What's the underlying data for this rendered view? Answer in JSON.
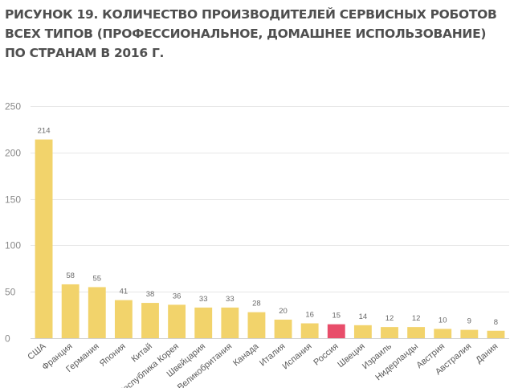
{
  "title": {
    "line1": "РИСУНОК 19. КОЛИЧЕСТВО ПРОИЗВОДИТЕЛЕЙ СЕРВИСНЫХ РОБОТОВ",
    "line2": "ВСЕХ ТИПОВ (ПРОФЕССИОНАЛЬНОЕ, ДОМАШНЕЕ ИСПОЛЬЗОВАНИЕ)",
    "line3": "ПО СТРАНАМ В 2016 Г."
  },
  "colors": {
    "bar": "#f2d36b",
    "highlight": "#e84d6a",
    "title": "#4f4f4f"
  },
  "chart_data": {
    "type": "bar",
    "title": "",
    "xlabel": "",
    "ylabel": "",
    "ylim": [
      0,
      250
    ],
    "yticks": [
      0,
      50,
      100,
      150,
      200,
      250
    ],
    "grid": true,
    "categories": [
      "США",
      "Франция",
      "Германия",
      "Япония",
      "Китай",
      "Республика Корея",
      "Швейцария",
      "Великобритания",
      "Канада",
      "Италия",
      "Испания",
      "Россия",
      "Швеция",
      "Израиль",
      "Нидерланды",
      "Австрия",
      "Австралия",
      "Дания"
    ],
    "values": [
      214,
      58,
      55,
      41,
      38,
      36,
      33,
      33,
      28,
      20,
      16,
      15,
      14,
      12,
      12,
      10,
      9,
      8
    ],
    "highlight_category": "Россия"
  }
}
